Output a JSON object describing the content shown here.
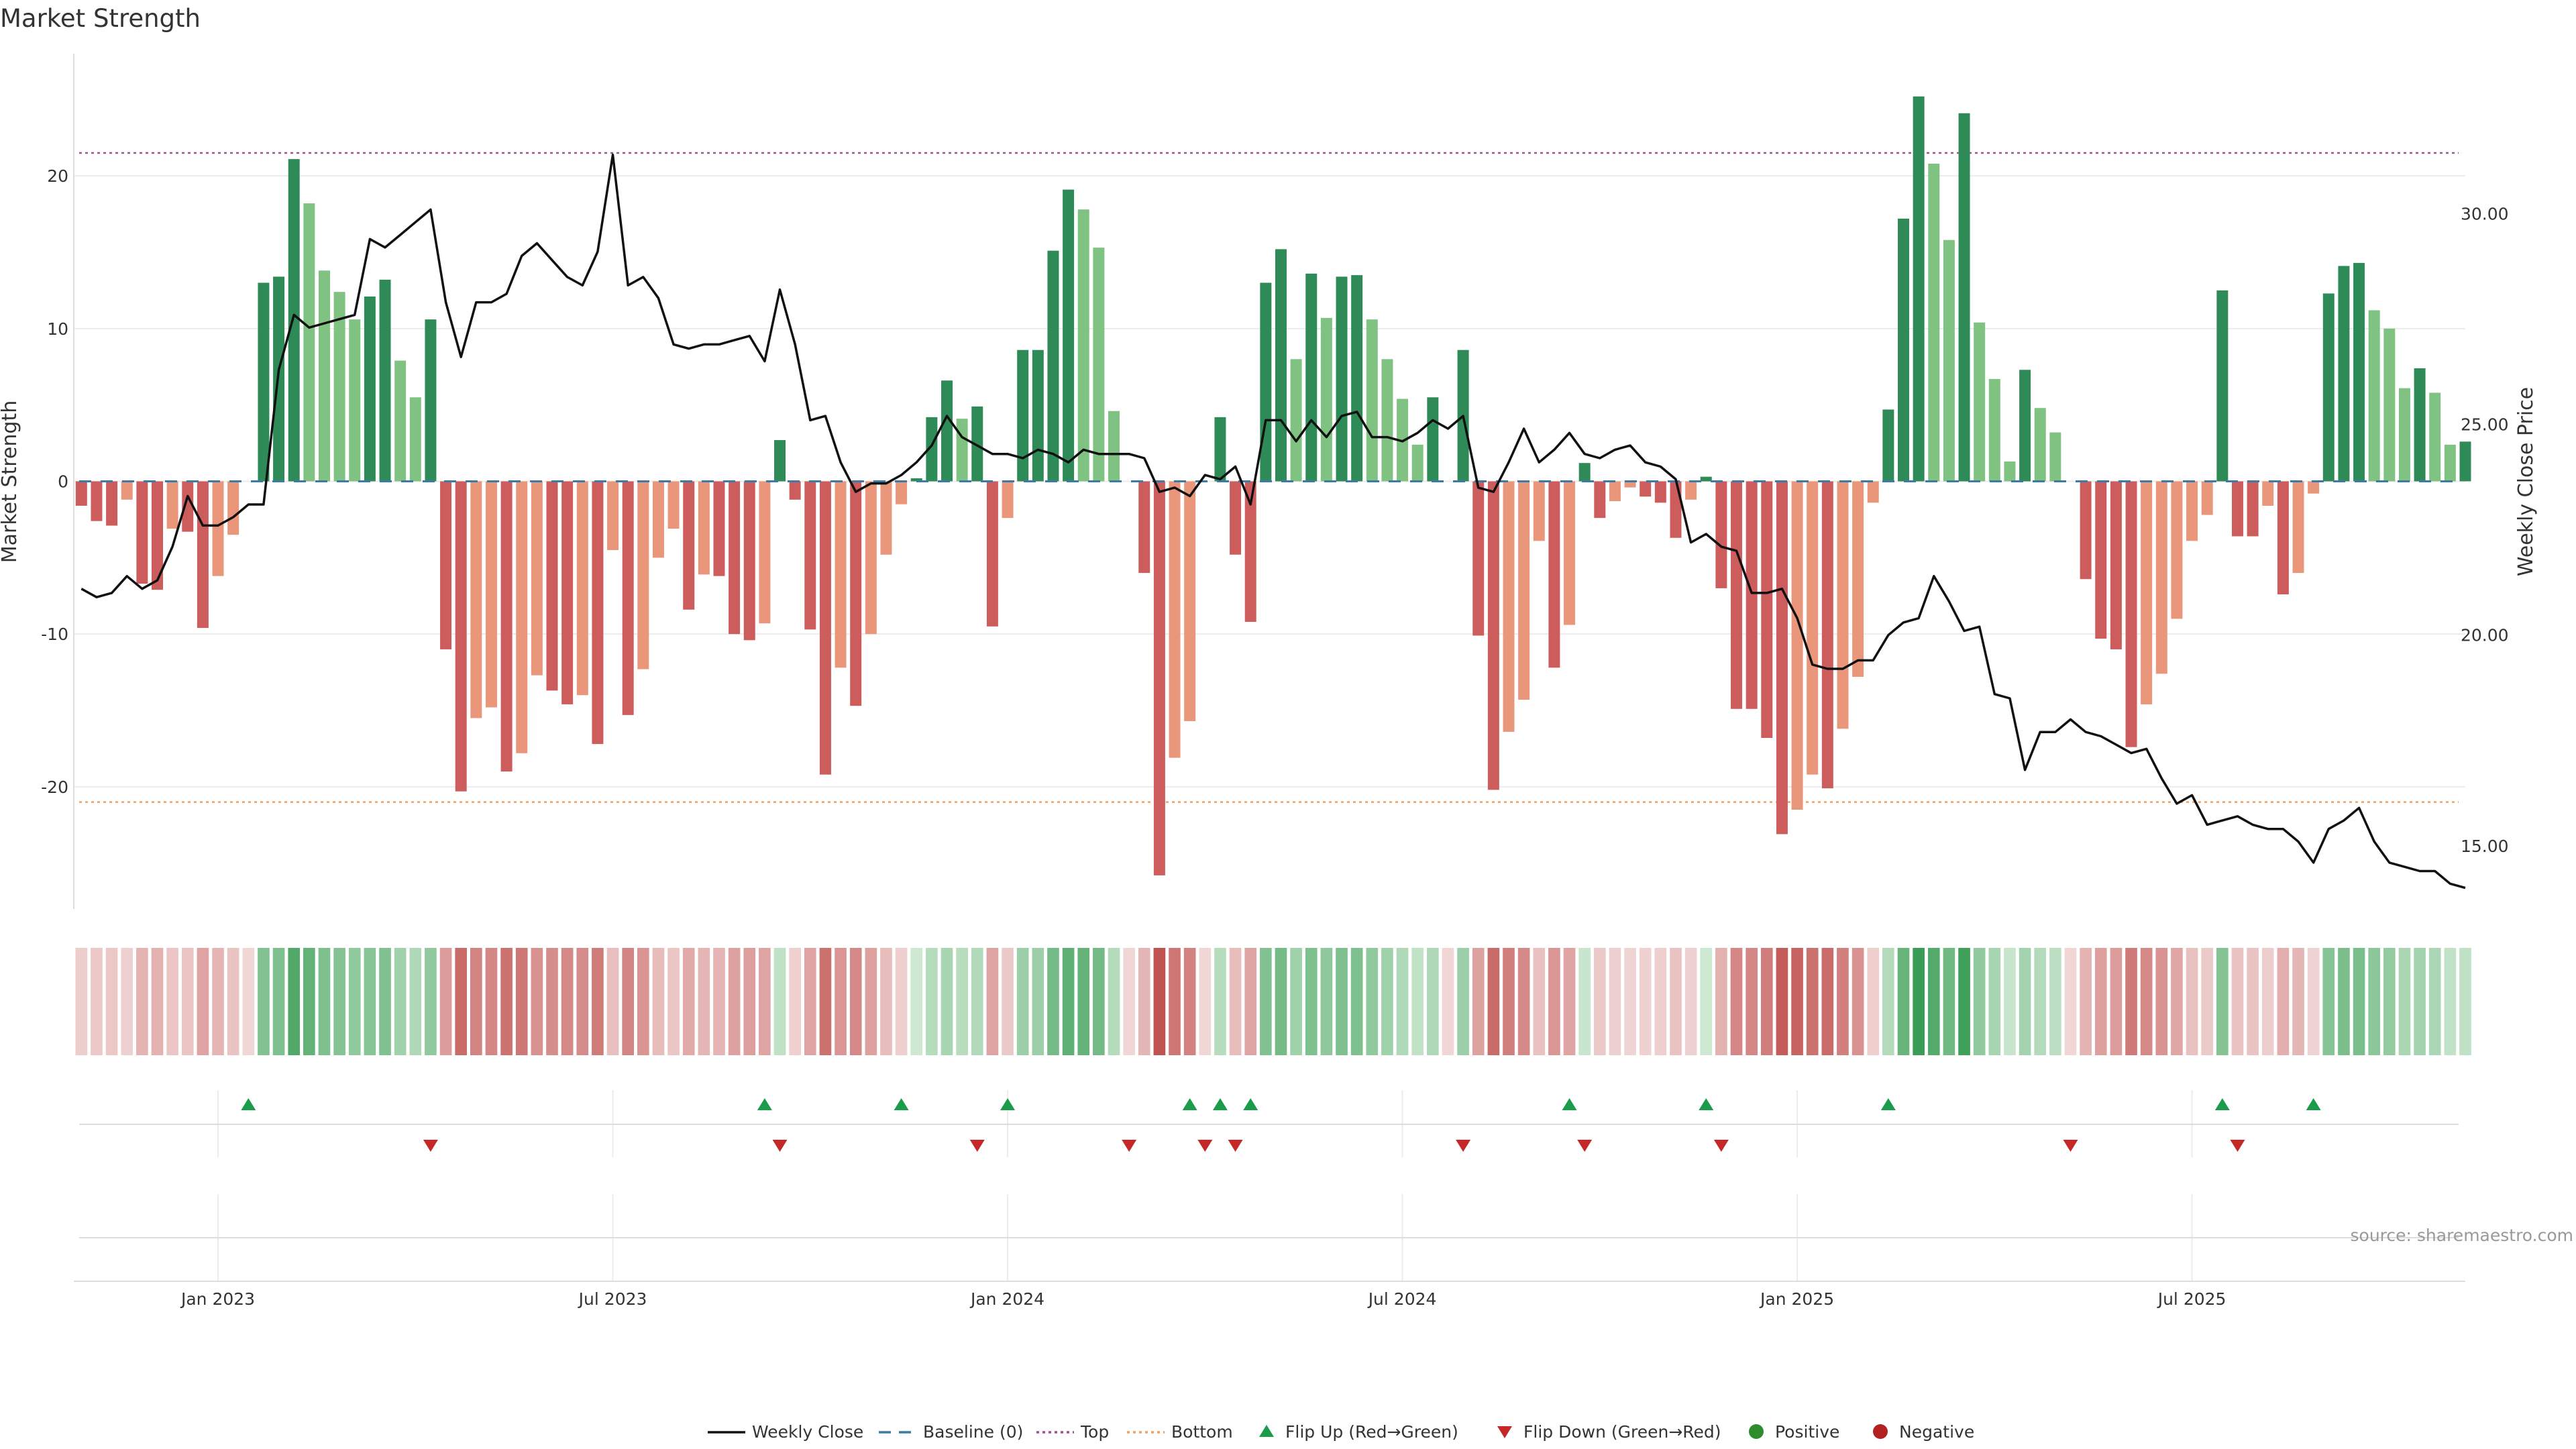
{
  "chart_data": {
    "type": "bar",
    "title": "Market Strength",
    "ylabel": "Market Strength",
    "ylabel_right": "Weekly Close Price",
    "ylim": [
      -28,
      28
    ],
    "ylim_right": [
      13.5,
      33.8
    ],
    "yticks": [
      -20,
      -10,
      0,
      10,
      20
    ],
    "yticks_right": [
      "15.00",
      "20.00",
      "25.00",
      "30.00"
    ],
    "top_threshold": 21.5,
    "bottom_threshold": -21,
    "x_ticks": [
      "Jan 2023",
      "Jul 2023",
      "Jan 2024",
      "Jul 2024",
      "Jan 2025",
      "Jul 2025"
    ],
    "x_tick_weeks": [
      9,
      35,
      61,
      87,
      113,
      139
    ],
    "source": "source: sharemaestro.com",
    "colors": {
      "strong_pos": "#2e8b57",
      "weak_pos": "#7fc281",
      "strong_neg": "#cd5c5c",
      "weak_neg": "#e9967a",
      "price_line": "#111111",
      "top_line": "#a05195",
      "bottom_line": "#f0a060",
      "baseline": "#3a7ca5",
      "flip_up": "#1a9c4a",
      "flip_down": "#c62828"
    },
    "series": [
      {
        "name": "Market Strength",
        "values": [
          -1.6,
          -2.6,
          -2.9,
          -1.2,
          -6.7,
          -7.1,
          -3.1,
          -3.3,
          -9.6,
          -6.2,
          -3.5,
          0,
          13,
          13.4,
          21.1,
          18.2,
          13.8,
          12.4,
          10.6,
          12.1,
          13.2,
          7.9,
          5.5,
          10.6,
          -11,
          -20.3,
          -15.5,
          -14.8,
          -19,
          -17.8,
          -12.7,
          -13.7,
          -14.6,
          -14,
          -17.2,
          -4.5,
          -15.3,
          -12.3,
          -5,
          -3.1,
          -8.4,
          -6.1,
          -6.2,
          -10,
          -10.4,
          -9.3,
          2.7,
          -1.2,
          -9.7,
          -19.2,
          -12.2,
          -14.7,
          -10,
          -4.8,
          -1.5,
          0.2,
          4.2,
          6.6,
          4.1,
          4.9,
          -9.5,
          -2.4,
          8.6,
          8.6,
          15.1,
          19.1,
          17.8,
          15.3,
          4.6,
          0,
          -6,
          -25.8,
          -18.1,
          -15.7,
          0,
          4.2,
          -4.8,
          -9.2,
          13,
          15.2,
          8,
          13.6,
          10.7,
          13.4,
          13.5,
          10.6,
          8,
          5.4,
          2.4,
          5.5,
          0,
          8.6,
          -10.1,
          -20.2,
          -16.4,
          -14.3,
          -3.9,
          -12.2,
          -9.4,
          1.2,
          -2.4,
          -1.3,
          -0.4,
          -1,
          -1.4,
          -3.7,
          -1.2,
          0.3,
          -7,
          -14.9,
          -14.9,
          -16.8,
          -23.1,
          -21.5,
          -19.2,
          -20.1,
          -16.2,
          -12.8,
          -1.4,
          4.7,
          17.2,
          25.2,
          20.8,
          15.8,
          24.1,
          10.4,
          6.7,
          1.3,
          7.3,
          4.8,
          3.2,
          0,
          -6.4,
          -10.3,
          -11,
          -17.4,
          -14.6,
          -12.6,
          -9,
          -3.9,
          -2.2,
          12.5,
          -3.6,
          -3.6,
          -1.6,
          -7.4,
          -6,
          -0.8,
          12.3,
          14.1,
          14.3,
          11.2,
          10,
          6.1,
          7.4,
          5.8,
          2.4,
          2.6
        ]
      },
      {
        "name": "Weekly Close",
        "values": [
          21.1,
          20.9,
          21,
          21.4,
          21.1,
          21.3,
          22.1,
          23.3,
          22.6,
          22.6,
          22.8,
          23.1,
          23.1,
          26.3,
          27.6,
          27.3,
          27.4,
          27.5,
          27.6,
          29.4,
          29.2,
          29.5,
          29.8,
          30.1,
          27.9,
          26.6,
          27.9,
          27.9,
          28.1,
          29,
          29.3,
          28.9,
          28.5,
          28.3,
          29.1,
          31.4,
          28.3,
          28.5,
          28,
          26.9,
          26.8,
          26.9,
          26.9,
          27,
          27.1,
          26.5,
          28.2,
          26.9,
          25.1,
          25.2,
          24.1,
          23.4,
          23.6,
          23.6,
          23.8,
          24.1,
          24.5,
          25.2,
          24.7,
          24.5,
          24.3,
          24.3,
          24.2,
          24.4,
          24.3,
          24.1,
          24.4,
          24.3,
          24.3,
          24.3,
          24.2,
          23.4,
          23.5,
          23.3,
          23.8,
          23.7,
          24,
          23.1,
          25.1,
          25.1,
          24.6,
          25.1,
          24.7,
          25.2,
          25.3,
          24.7,
          24.7,
          24.6,
          24.8,
          25.1,
          24.9,
          25.2,
          23.5,
          23.4,
          24.1,
          24.9,
          24.1,
          24.4,
          24.8,
          24.3,
          24.2,
          24.4,
          24.5,
          24.1,
          24,
          23.7,
          22.2,
          22.4,
          22.1,
          22,
          21,
          21,
          21.1,
          20.4,
          19.3,
          19.2,
          19.2,
          19.4,
          19.4,
          20,
          20.3,
          20.4,
          21.4,
          20.8,
          20.1,
          20.2,
          18.6,
          18.5,
          16.8,
          17.7,
          17.7,
          18,
          17.7,
          17.6,
          17.4,
          17.2,
          17.3,
          16.6,
          16,
          16.2,
          15.5,
          15.6,
          15.7,
          15.5,
          15.4,
          15.4,
          15.1,
          14.6,
          15.4,
          15.6,
          15.9,
          15.1,
          14.6,
          14.5,
          14.4,
          14.4,
          14.1,
          14
        ]
      }
    ],
    "flip_up_weeks": [
      11,
      45,
      54,
      61,
      73,
      75,
      77,
      98,
      107,
      119,
      141,
      147
    ],
    "flip_down_weeks": [
      23,
      46,
      59,
      69,
      74,
      76,
      91,
      99,
      108,
      131,
      142
    ],
    "legend": [
      "Weekly Close",
      "Baseline (0)",
      "Top",
      "Bottom",
      "Flip Up (Red→Green)",
      "Flip Down (Green→Red)",
      "Positive",
      "Negative"
    ]
  }
}
